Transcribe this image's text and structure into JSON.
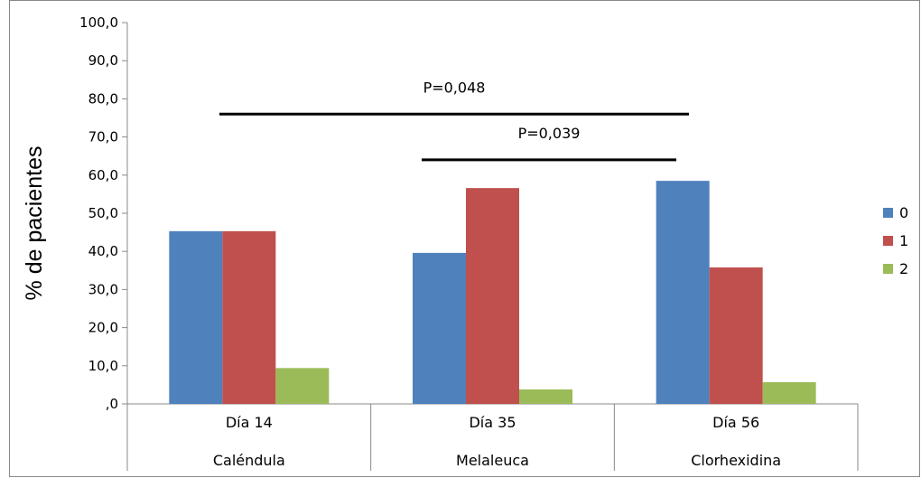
{
  "chart_data": {
    "type": "bar",
    "title": "",
    "xlabel": "",
    "ylabel": "% de pacientes",
    "ylim": [
      0,
      100
    ],
    "yticks": [
      "100,0",
      "90,0",
      "80,0",
      "70,0",
      "60,0",
      "50,0",
      "40,0",
      "30,0",
      "20,0",
      "10,0",
      ",0"
    ],
    "grid": false,
    "legend_position": "right",
    "categories": [
      "Día 14",
      "Día 35",
      "Día 56"
    ],
    "groups": [
      "Caléndula",
      "Melaleuca",
      "Clorhexidina"
    ],
    "series": [
      {
        "name": "0",
        "color": "#4F81BD",
        "values": [
          45.3,
          39.6,
          58.5
        ]
      },
      {
        "name": "1",
        "color": "#C0504D",
        "values": [
          45.3,
          56.6,
          35.8
        ]
      },
      {
        "name": "2",
        "color": "#9BBB59",
        "values": [
          9.4,
          3.8,
          5.7
        ]
      }
    ],
    "annotations": [
      {
        "text": "P=0,048",
        "from_category": 0,
        "to_category": 2,
        "level": 76
      },
      {
        "text": "P=0,039",
        "from_category": 1,
        "to_category": 2,
        "level": 64
      }
    ]
  }
}
